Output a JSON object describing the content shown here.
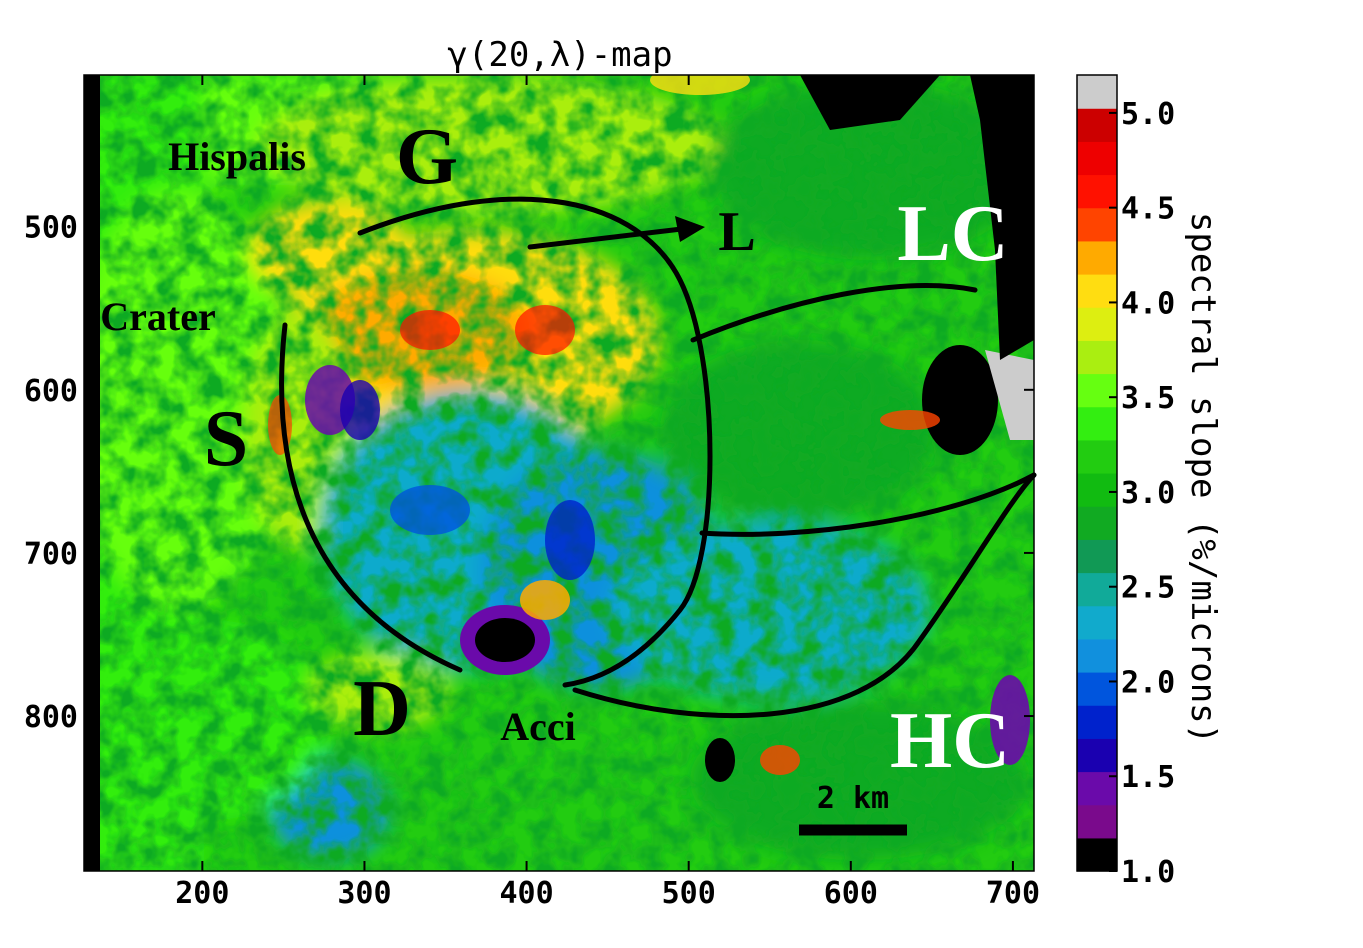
{
  "chart_data": {
    "type": "heatmap",
    "title": "γ(20,λ)-map",
    "colorbar_label": "spectral slope (%/microns)",
    "x_ticks": [
      "200",
      "300",
      "400",
      "500",
      "600",
      "700"
    ],
    "y_ticks": [
      "500",
      "600",
      "700",
      "800"
    ],
    "x_range": [
      127,
      713
    ],
    "y_range": [
      407,
      895
    ],
    "y_inverted": true,
    "colorbar_ticks": [
      "1.0",
      "1.5",
      "2.0",
      "2.5",
      "3.0",
      "3.5",
      "4.0",
      "4.5",
      "5.0"
    ],
    "colorbar_range": [
      1.0,
      5.2
    ],
    "colormap": [
      "#000000",
      "#7a0a8c",
      "#6a0aaa",
      "#1a00b0",
      "#0022cc",
      "#0055dd",
      "#1190dd",
      "#11aacc",
      "#11aa99",
      "#119955",
      "#11aa22",
      "#11bb11",
      "#22cc11",
      "#33ee11",
      "#66ff11",
      "#aaee11",
      "#ddee11",
      "#ffdd11",
      "#ffaa00",
      "#ff4400",
      "#ff1100",
      "#ee0000",
      "#cc0000",
      "#cccccc"
    ],
    "annotations": [
      {
        "text": "G",
        "color": "#000000"
      },
      {
        "text": "L",
        "color": "#000000"
      },
      {
        "text": "LC",
        "color": "#ffffff"
      },
      {
        "text": "S",
        "color": "#000000"
      },
      {
        "text": "D",
        "color": "#000000"
      },
      {
        "text": "HC",
        "color": "#ffffff"
      },
      {
        "text": "Hispalis",
        "color": "#000000"
      },
      {
        "text": "Crater",
        "color": "#000000"
      },
      {
        "text": "Acci",
        "color": "#000000"
      }
    ],
    "scale_bar": "2 km"
  }
}
